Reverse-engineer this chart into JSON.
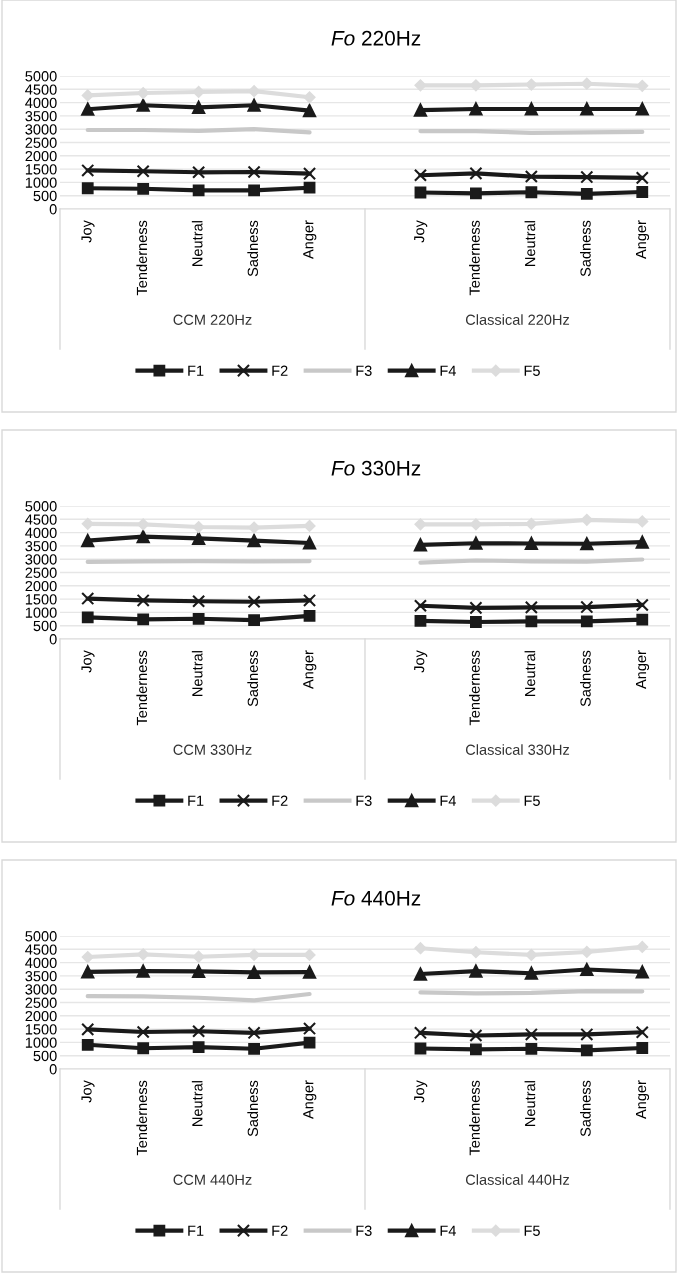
{
  "chart_data": [
    {
      "type": "line",
      "title": "Fo 220Hz",
      "categories": [
        "Joy",
        "Tenderness",
        "Neutral",
        "Sadness",
        "Anger",
        null,
        "Joy",
        "Tenderness",
        "Neutral",
        "Sadness",
        "Anger"
      ],
      "series": [
        {
          "name": "F1",
          "color": "#1a1a1a",
          "marker": "square",
          "values": [
            780,
            760,
            700,
            700,
            800,
            null,
            620,
            590,
            630,
            570,
            640
          ]
        },
        {
          "name": "F2",
          "color": "#1a1a1a",
          "marker": "cross",
          "values": [
            1450,
            1420,
            1380,
            1390,
            1330,
            null,
            1270,
            1340,
            1220,
            1200,
            1170
          ]
        },
        {
          "name": "F3",
          "color": "#c8c8c8",
          "marker": "none",
          "values": [
            2970,
            2970,
            2940,
            3000,
            2880,
            null,
            2930,
            2930,
            2860,
            2880,
            2900
          ]
        },
        {
          "name": "F4",
          "color": "#1a1a1a",
          "marker": "triangle",
          "values": [
            3750,
            3900,
            3820,
            3900,
            3700,
            null,
            3720,
            3760,
            3760,
            3760,
            3760
          ]
        },
        {
          "name": "F5",
          "color": "#dcdcdc",
          "marker": "diamond",
          "values": [
            4270,
            4360,
            4400,
            4430,
            4200,
            null,
            4650,
            4650,
            4680,
            4710,
            4630
          ]
        }
      ],
      "ylim": [
        0,
        5000
      ],
      "yticks": [
        0,
        500,
        1000,
        1500,
        2000,
        2500,
        3000,
        3500,
        4000,
        4500,
        5000
      ],
      "grid": "y",
      "legend": "bottom",
      "annotations": [
        "CCM 220Hz",
        "Classical 220Hz"
      ]
    },
    {
      "type": "line",
      "title": "Fo 330Hz",
      "categories": [
        "Joy",
        "Tenderness",
        "Neutral",
        "Sadness",
        "Anger",
        null,
        "Joy",
        "Tenderness",
        "Neutral",
        "Sadness",
        "Anger"
      ],
      "series": [
        {
          "name": "F1",
          "color": "#1a1a1a",
          "marker": "square",
          "values": [
            810,
            740,
            760,
            710,
            870,
            null,
            680,
            640,
            660,
            660,
            730
          ]
        },
        {
          "name": "F2",
          "color": "#1a1a1a",
          "marker": "cross",
          "values": [
            1520,
            1450,
            1420,
            1400,
            1450,
            null,
            1250,
            1170,
            1190,
            1200,
            1280
          ]
        },
        {
          "name": "F3",
          "color": "#c8c8c8",
          "marker": "none",
          "values": [
            2900,
            2920,
            2930,
            2920,
            2930,
            null,
            2870,
            2950,
            2920,
            2910,
            2990
          ]
        },
        {
          "name": "F4",
          "color": "#1a1a1a",
          "marker": "triangle",
          "values": [
            3700,
            3850,
            3780,
            3700,
            3610,
            null,
            3540,
            3600,
            3590,
            3580,
            3640
          ]
        },
        {
          "name": "F5",
          "color": "#dcdcdc",
          "marker": "diamond",
          "values": [
            4330,
            4310,
            4210,
            4190,
            4250,
            null,
            4310,
            4310,
            4330,
            4480,
            4420
          ]
        }
      ],
      "ylim": [
        0,
        5000
      ],
      "yticks": [
        0,
        500,
        1000,
        1500,
        2000,
        2500,
        3000,
        3500,
        4000,
        4500,
        5000
      ],
      "grid": "y",
      "legend": "bottom",
      "annotations": [
        "CCM 330Hz",
        "Classical 330Hz"
      ]
    },
    {
      "type": "line",
      "title": "Fo 440Hz",
      "categories": [
        "Joy",
        "Tenderness",
        "Neutral",
        "Sadness",
        "Anger",
        null,
        "Joy",
        "Tenderness",
        "Neutral",
        "Sadness",
        "Anger"
      ],
      "series": [
        {
          "name": "F1",
          "color": "#1a1a1a",
          "marker": "square",
          "values": [
            910,
            780,
            820,
            760,
            990,
            null,
            770,
            740,
            760,
            700,
            790
          ]
        },
        {
          "name": "F2",
          "color": "#1a1a1a",
          "marker": "cross",
          "values": [
            1490,
            1390,
            1420,
            1360,
            1520,
            null,
            1360,
            1260,
            1300,
            1300,
            1380
          ]
        },
        {
          "name": "F3",
          "color": "#c8c8c8",
          "marker": "none",
          "values": [
            2740,
            2730,
            2680,
            2580,
            2820,
            null,
            2880,
            2840,
            2860,
            2930,
            2920
          ]
        },
        {
          "name": "F4",
          "color": "#1a1a1a",
          "marker": "triangle",
          "values": [
            3650,
            3680,
            3670,
            3630,
            3640,
            null,
            3570,
            3680,
            3600,
            3740,
            3650
          ]
        },
        {
          "name": "F5",
          "color": "#dcdcdc",
          "marker": "diamond",
          "values": [
            4210,
            4310,
            4220,
            4290,
            4290,
            null,
            4540,
            4390,
            4290,
            4400,
            4590
          ]
        }
      ],
      "ylim": [
        0,
        5000
      ],
      "yticks": [
        0,
        500,
        1000,
        1500,
        2000,
        2500,
        3000,
        3500,
        4000,
        4500,
        5000
      ],
      "grid": "y",
      "legend": "bottom",
      "annotations": [
        "CCM 440Hz",
        "Classical 440Hz"
      ]
    }
  ]
}
